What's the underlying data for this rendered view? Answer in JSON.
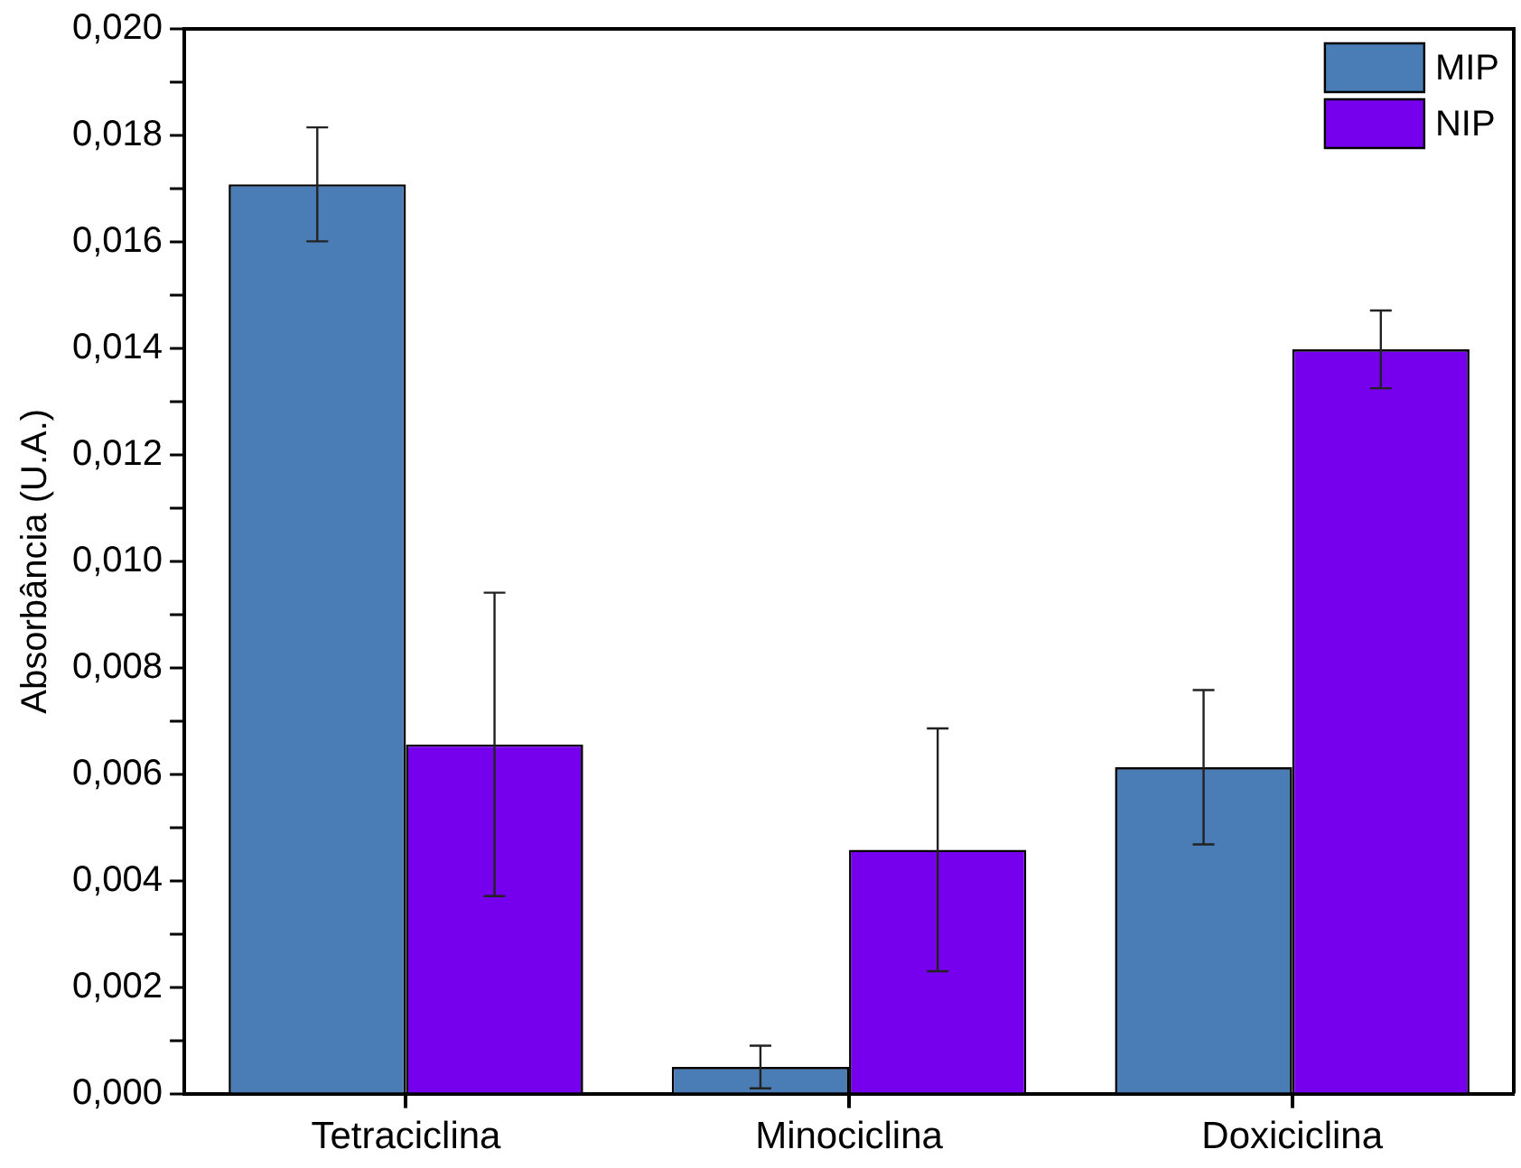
{
  "chart_data": {
    "type": "bar",
    "ylabel": "Absorbância (U.A.)",
    "categories": [
      "Tetraciclina",
      "Minociclina",
      "Doxiciclina"
    ],
    "series": [
      {
        "name": "MIP",
        "color": "#4a7db6",
        "values": [
          0.01708,
          0.0005,
          0.00613
        ],
        "errors": [
          0.00107,
          0.0004,
          0.00145
        ]
      },
      {
        "name": "NIP",
        "color": "#7600ee",
        "values": [
          0.00656,
          0.00458,
          0.01398
        ],
        "errors": [
          0.00285,
          0.00228,
          0.00073
        ]
      }
    ],
    "ylim": [
      0,
      0.02
    ],
    "yticks": [
      {
        "value": 0,
        "label": "0,000"
      },
      {
        "value": 0.001,
        "label": null
      },
      {
        "value": 0.002,
        "label": "0,002"
      },
      {
        "value": 0.003,
        "label": null
      },
      {
        "value": 0.004,
        "label": "0,004"
      },
      {
        "value": 0.005,
        "label": null
      },
      {
        "value": 0.006,
        "label": "0,006"
      },
      {
        "value": 0.007,
        "label": null
      },
      {
        "value": 0.008,
        "label": "0,008"
      },
      {
        "value": 0.009,
        "label": null
      },
      {
        "value": 0.01,
        "label": "0,010"
      },
      {
        "value": 0.011,
        "label": null
      },
      {
        "value": 0.012,
        "label": "0,012"
      },
      {
        "value": 0.013,
        "label": null
      },
      {
        "value": 0.014,
        "label": "0,014"
      },
      {
        "value": 0.015,
        "label": null
      },
      {
        "value": 0.016,
        "label": "0,016"
      },
      {
        "value": 0.017,
        "label": null
      },
      {
        "value": 0.018,
        "label": "0,018"
      },
      {
        "value": 0.019,
        "label": null
      },
      {
        "value": 0.02,
        "label": "0,020"
      }
    ],
    "grid": false,
    "legend": "top right"
  }
}
